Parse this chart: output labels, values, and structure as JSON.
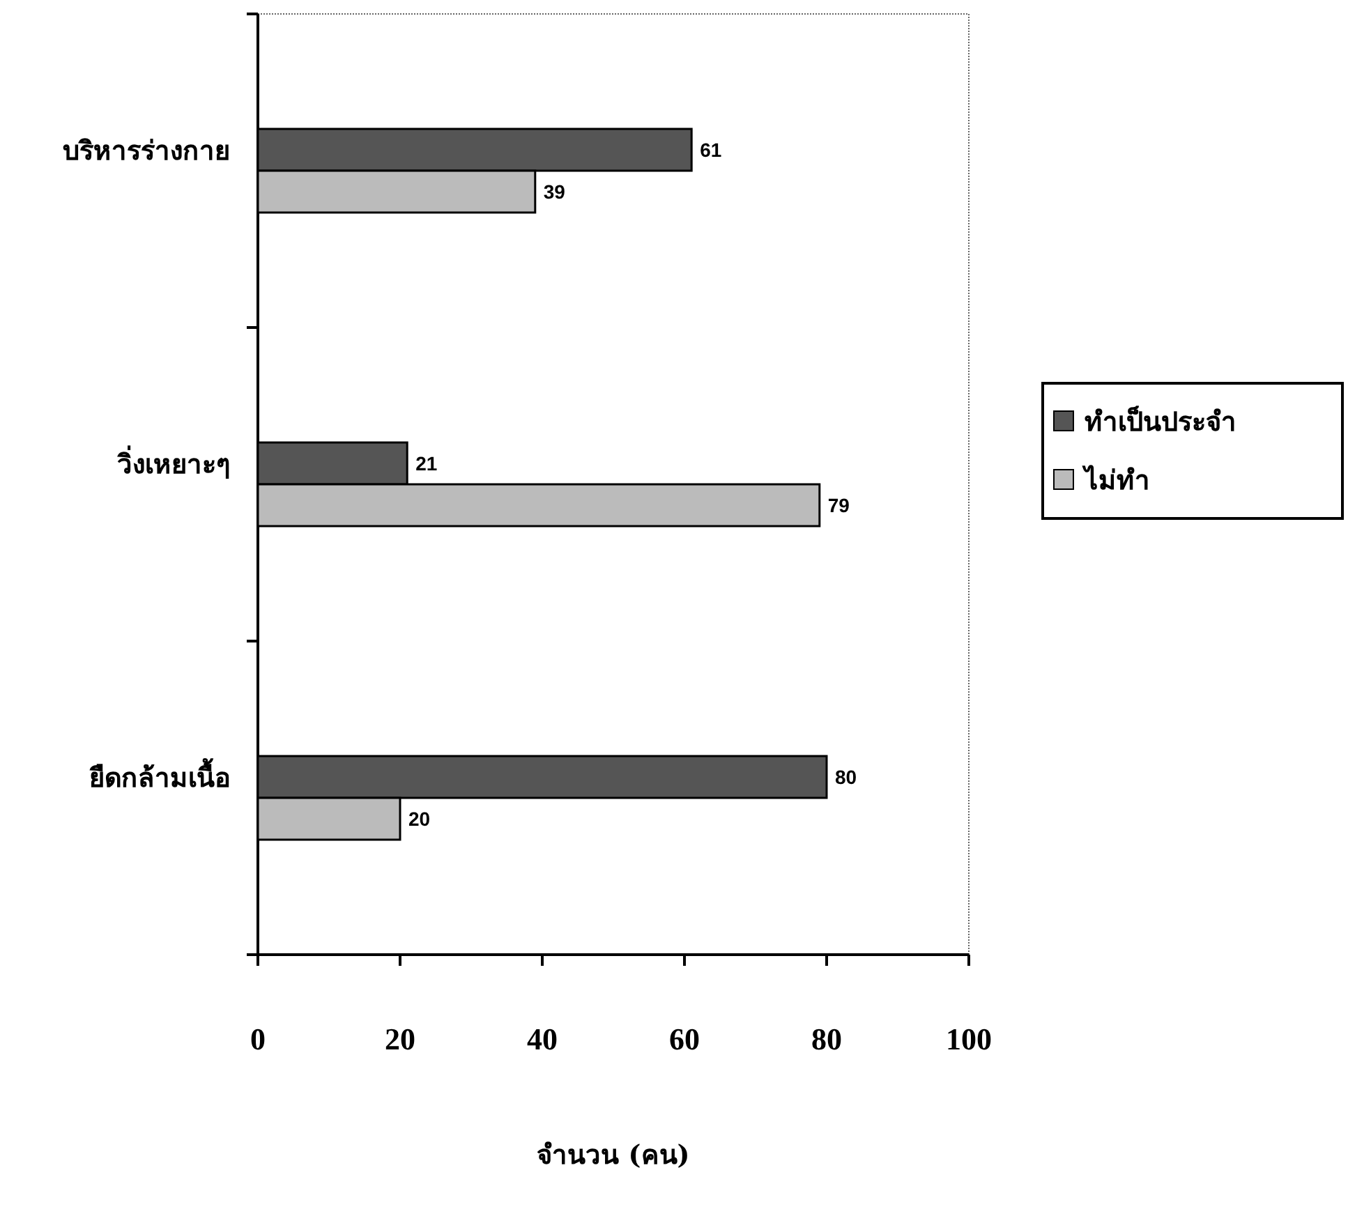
{
  "chart_data": {
    "type": "bar",
    "orientation": "horizontal",
    "categories": [
      "บริหารร่างกาย",
      "วิ่งเหยาะๆ",
      "ยืดกล้ามเนื้อ"
    ],
    "series": [
      {
        "name": "ทำเป็นประจำ",
        "color": "#555555",
        "values": [
          61,
          21,
          80
        ]
      },
      {
        "name": "ไม่ทำ",
        "color": "#bbbbbb",
        "values": [
          39,
          79,
          20
        ]
      }
    ],
    "xlim": [
      0,
      100
    ],
    "xticks": [
      0,
      20,
      40,
      60,
      80,
      100
    ],
    "xlabel": "จำนวน (คน)",
    "data_labels": true,
    "legend": "right",
    "grid": false
  }
}
